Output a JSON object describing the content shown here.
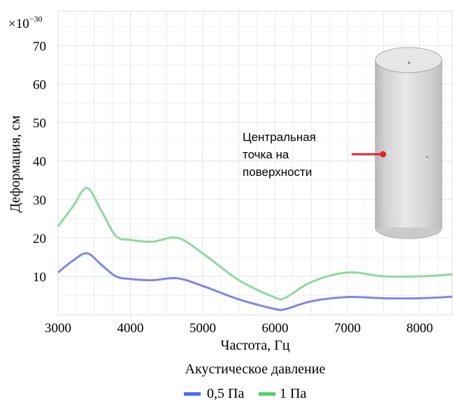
{
  "chart_data": {
    "type": "line",
    "xlabel": "Частота, Гц",
    "ylabel": "Деформация, см",
    "y_multiplier": "×10",
    "y_multiplier_exp": "−30",
    "xlim": [
      3000,
      8450
    ],
    "ylim": [
      0,
      79
    ],
    "xticks": [
      3000,
      4000,
      5000,
      6000,
      7000,
      8000
    ],
    "yticks": [
      10,
      20,
      30,
      40,
      50,
      60,
      70
    ],
    "grid": true,
    "legend": {
      "title": "Акустическое давление",
      "position": "bottom"
    },
    "annotation": [
      "Центральная",
      "точка на",
      "поверхности"
    ],
    "series": [
      {
        "name": "0,5 Па",
        "color": "#7f86e6",
        "x": [
          3000,
          3200,
          3400,
          3600,
          3800,
          4000,
          4300,
          4650,
          5000,
          5500,
          6000,
          6150,
          6500,
          7000,
          7500,
          8000,
          8450
        ],
        "y": [
          11,
          14,
          16,
          13,
          10,
          9.3,
          9,
          9.5,
          7.5,
          4,
          1.5,
          1.5,
          3.5,
          4.6,
          4.3,
          4.3,
          4.7
        ]
      },
      {
        "name": "1 Па",
        "color": "#8fd9a0",
        "x": [
          3000,
          3200,
          3400,
          3600,
          3800,
          4000,
          4300,
          4650,
          5000,
          5500,
          6000,
          6150,
          6500,
          7000,
          7500,
          8000,
          8450
        ],
        "y": [
          23,
          28,
          33,
          27,
          20.5,
          19.5,
          19,
          20,
          16,
          9,
          4.5,
          4.5,
          8.5,
          11,
          10,
          10,
          10.5
        ]
      }
    ]
  },
  "legend_colors": {
    "series_0": "#4a6cf0",
    "series_1": "#4fd06a"
  },
  "marker_color": "#e0242e"
}
